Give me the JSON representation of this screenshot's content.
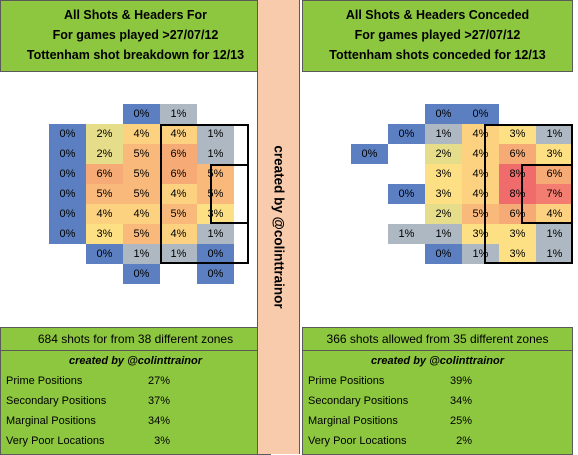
{
  "divider": {
    "text": "created by @colinttrainor"
  },
  "left": {
    "title_lines": [
      "All Shots & Headers For",
      "For games played >27/07/12",
      "Tottenham shot breakdown for 12/13"
    ],
    "summary": "684 shots for from 38 different zones",
    "credit": "created by @colinttrainor",
    "stats": [
      {
        "label": "Prime Positions",
        "value": "27%"
      },
      {
        "label": "Secondary Positions",
        "value": "37%"
      },
      {
        "label": "Marginal Positions",
        "value": "34%"
      },
      {
        "label": "Very Poor Locations",
        "value": "3%"
      }
    ],
    "rows": [
      [
        null,
        null,
        "0%",
        "1%",
        null,
        null
      ],
      [
        "0%",
        "2%",
        "4%",
        "4%",
        "1%",
        null
      ],
      [
        "0%",
        "2%",
        "5%",
        "6%",
        "1%",
        null
      ],
      [
        "0%",
        "6%",
        "5%",
        "6%",
        "5%",
        null
      ],
      [
        "0%",
        "5%",
        "5%",
        "4%",
        "5%",
        null
      ],
      [
        "0%",
        "4%",
        "4%",
        "5%",
        "3%",
        null
      ],
      [
        "0%",
        "3%",
        "5%",
        "4%",
        "1%",
        null
      ],
      [
        null,
        "0%",
        "1%",
        "1%",
        "0%",
        null
      ],
      [
        null,
        null,
        "0%",
        null,
        "0%",
        null
      ]
    ]
  },
  "right": {
    "title_lines": [
      "All Shots & Headers Conceded",
      "For games played >27/07/12",
      "Tottenham shots conceded for 12/13"
    ],
    "summary": "366 shots allowed from 35 different zones",
    "credit": "created by @colinttrainor",
    "stats": [
      {
        "label": "Prime Positions",
        "value": "39%"
      },
      {
        "label": "Secondary Positions",
        "value": "34%"
      },
      {
        "label": "Marginal Positions",
        "value": "25%"
      },
      {
        "label": "Very Poor Locations",
        "value": "2%"
      }
    ],
    "rows": [
      [
        null,
        null,
        "0%",
        "0%",
        null,
        null
      ],
      [
        null,
        "0%",
        "1%",
        "4%",
        "3%",
        "1%"
      ],
      [
        "0%",
        null,
        "2%",
        "4%",
        "6%",
        "3%"
      ],
      [
        null,
        null,
        "3%",
        "4%",
        "8%",
        "6%"
      ],
      [
        null,
        "0%",
        "3%",
        "4%",
        "8%",
        "7%"
      ],
      [
        null,
        null,
        "2%",
        "5%",
        "6%",
        "4%"
      ],
      [
        null,
        "1%",
        "1%",
        "3%",
        "3%",
        "1%"
      ],
      [
        null,
        null,
        "0%",
        "1%",
        "3%",
        "1%"
      ],
      [
        null,
        null,
        null,
        null,
        null,
        null
      ]
    ]
  },
  "colors": {
    "p0": "#5b7fc0",
    "p1": "#aeb8c2",
    "p2": "#e5dd8a",
    "p3": "#fde084",
    "p4": "#fcd280",
    "p5": "#f9b97a",
    "p6": "#f6aa75",
    "p7": "#f27d70",
    "p8": "#ef6b6c"
  }
}
